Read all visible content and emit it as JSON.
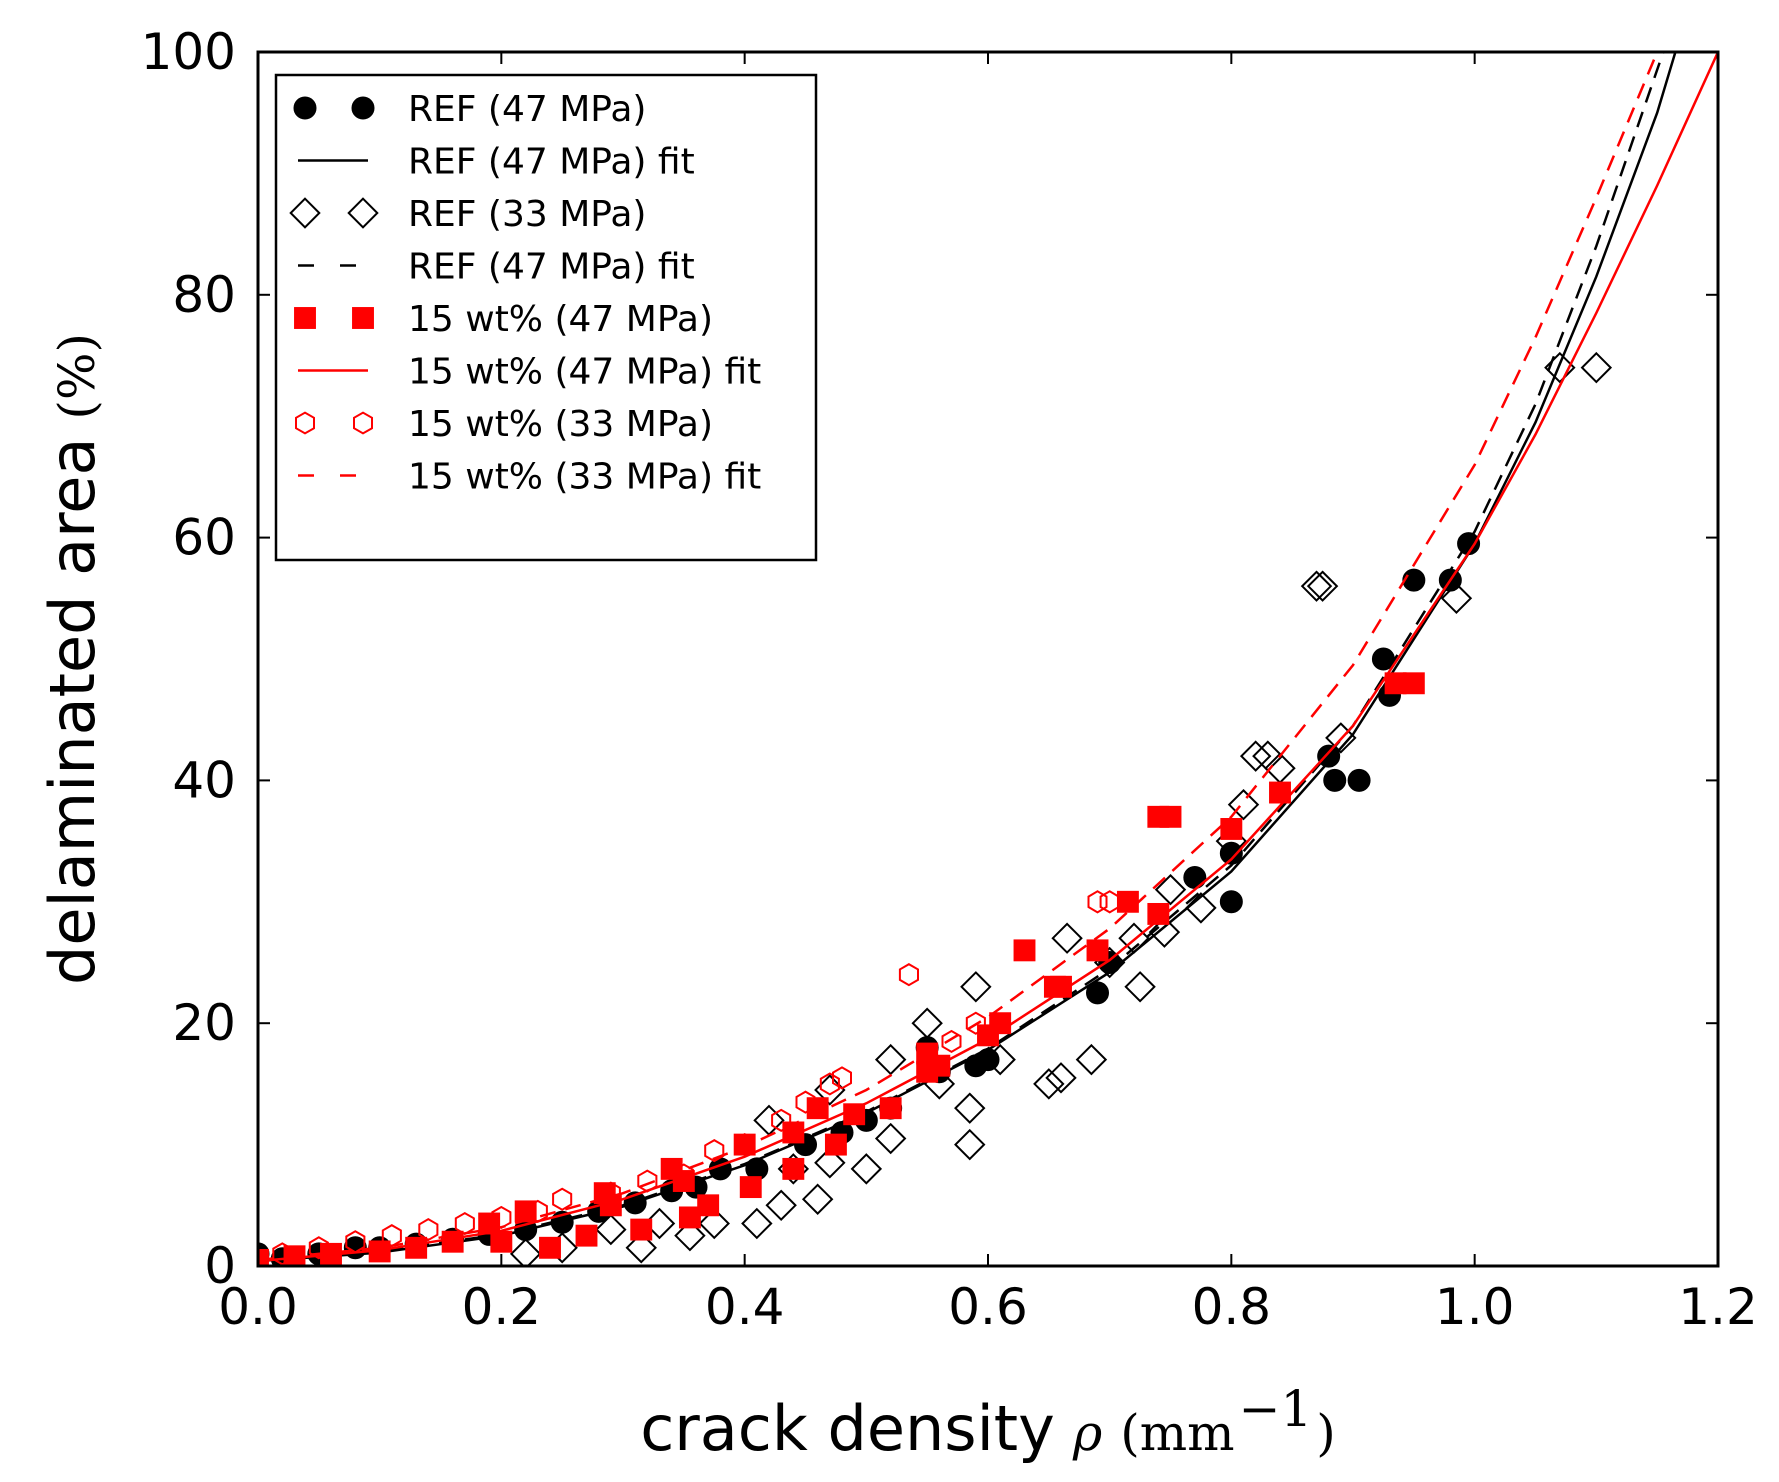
{
  "chart_data": {
    "type": "scatter",
    "title": "",
    "xlabel": {
      "main": "crack density",
      "symbol": "ρ",
      "unit_open": "(mm",
      "unit_exp": "−1",
      "unit_close": ")"
    },
    "ylabel": {
      "main": "delaminated area",
      "unit": "(%)"
    },
    "xlim": [
      0.0,
      1.2
    ],
    "ylim": [
      0,
      100
    ],
    "xticks": [
      "0.0",
      "0.2",
      "0.4",
      "0.6",
      "0.8",
      "1.0",
      "1.2"
    ],
    "yticks": [
      "0",
      "20",
      "40",
      "60",
      "80",
      "100"
    ],
    "xtick_values": [
      0.0,
      0.2,
      0.4,
      0.6,
      0.8,
      1.0,
      1.2
    ],
    "ytick_values": [
      0,
      20,
      40,
      60,
      80,
      100
    ],
    "legend_position": "top-left",
    "colors": {
      "black": "#000000",
      "red": "#ff0000"
    },
    "series": [
      {
        "name": "REF (47 MPa)",
        "kind": "scatter",
        "marker": "filled-circle",
        "color": "#000000",
        "points": [
          [
            0.0,
            1
          ],
          [
            0.02,
            0.6
          ],
          [
            0.05,
            1
          ],
          [
            0.08,
            1.5
          ],
          [
            0.1,
            1.5
          ],
          [
            0.13,
            1.8
          ],
          [
            0.16,
            2.2
          ],
          [
            0.19,
            2.6
          ],
          [
            0.22,
            3
          ],
          [
            0.25,
            3.6
          ],
          [
            0.28,
            4.5
          ],
          [
            0.31,
            5.2
          ],
          [
            0.34,
            6.2
          ],
          [
            0.36,
            6.5
          ],
          [
            0.38,
            8
          ],
          [
            0.41,
            8
          ],
          [
            0.45,
            10
          ],
          [
            0.48,
            11
          ],
          [
            0.5,
            12
          ],
          [
            0.52,
            13
          ],
          [
            0.55,
            18
          ],
          [
            0.56,
            16
          ],
          [
            0.59,
            16.5
          ],
          [
            0.6,
            17
          ],
          [
            0.69,
            22.5
          ],
          [
            0.7,
            25
          ],
          [
            0.77,
            32
          ],
          [
            0.8,
            34
          ],
          [
            0.8,
            30
          ],
          [
            0.88,
            42
          ],
          [
            0.885,
            40
          ],
          [
            0.905,
            40
          ],
          [
            0.925,
            50
          ],
          [
            0.93,
            47
          ],
          [
            0.95,
            56.5
          ],
          [
            0.98,
            56.5
          ],
          [
            0.995,
            59.5
          ]
        ]
      },
      {
        "name": "REF (47 MPa) fit",
        "kind": "line",
        "style": "solid",
        "color": "#000000",
        "points": [
          [
            0.0,
            0.4
          ],
          [
            0.1,
            1.1
          ],
          [
            0.2,
            2.5
          ],
          [
            0.3,
            4.9
          ],
          [
            0.4,
            8.3
          ],
          [
            0.5,
            12.6
          ],
          [
            0.6,
            17.8
          ],
          [
            0.7,
            24.2
          ],
          [
            0.8,
            32.5
          ],
          [
            0.9,
            43.8
          ],
          [
            1.0,
            59.5
          ],
          [
            1.05,
            69.5
          ],
          [
            1.1,
            81.5
          ],
          [
            1.15,
            95
          ],
          [
            1.165,
            100
          ]
        ]
      },
      {
        "name": "REF (33 MPa)",
        "kind": "scatter",
        "marker": "open-diamond",
        "color": "#000000",
        "points": [
          [
            0.22,
            1
          ],
          [
            0.25,
            1.5
          ],
          [
            0.29,
            3
          ],
          [
            0.315,
            1.5
          ],
          [
            0.33,
            3.5
          ],
          [
            0.355,
            2.5
          ],
          [
            0.375,
            3.5
          ],
          [
            0.41,
            3.5
          ],
          [
            0.43,
            5
          ],
          [
            0.42,
            12
          ],
          [
            0.44,
            8
          ],
          [
            0.46,
            5.5
          ],
          [
            0.47,
            8.5
          ],
          [
            0.47,
            14.5
          ],
          [
            0.5,
            8
          ],
          [
            0.52,
            10.5
          ],
          [
            0.52,
            17
          ],
          [
            0.55,
            20
          ],
          [
            0.56,
            15
          ],
          [
            0.585,
            10
          ],
          [
            0.585,
            13
          ],
          [
            0.59,
            23
          ],
          [
            0.61,
            17
          ],
          [
            0.65,
            15
          ],
          [
            0.66,
            15.5
          ],
          [
            0.665,
            27
          ],
          [
            0.685,
            17
          ],
          [
            0.7,
            25
          ],
          [
            0.72,
            27
          ],
          [
            0.725,
            23
          ],
          [
            0.745,
            27.5
          ],
          [
            0.75,
            31
          ],
          [
            0.775,
            29.5
          ],
          [
            0.8,
            35
          ],
          [
            0.81,
            38
          ],
          [
            0.82,
            42
          ],
          [
            0.83,
            42
          ],
          [
            0.84,
            41
          ],
          [
            0.87,
            56
          ],
          [
            0.875,
            56
          ],
          [
            0.89,
            43.5
          ],
          [
            0.985,
            55
          ],
          [
            1.07,
            74
          ],
          [
            1.1,
            74
          ]
        ]
      },
      {
        "name": "REF (47 MPa) fit",
        "kind": "line",
        "style": "dashed",
        "color": "#000000",
        "points": [
          [
            0.0,
            0.4
          ],
          [
            0.1,
            1.2
          ],
          [
            0.2,
            2.6
          ],
          [
            0.3,
            5.0
          ],
          [
            0.4,
            8.4
          ],
          [
            0.5,
            12.7
          ],
          [
            0.6,
            17.9
          ],
          [
            0.7,
            24.5
          ],
          [
            0.8,
            33
          ],
          [
            0.9,
            44.5
          ],
          [
            1.0,
            60.5
          ],
          [
            1.05,
            71
          ],
          [
            1.1,
            84
          ],
          [
            1.155,
            100
          ]
        ]
      },
      {
        "name": "15 wt% (47 MPa)",
        "kind": "scatter",
        "marker": "filled-square",
        "color": "#ff0000",
        "points": [
          [
            0.0,
            0.5
          ],
          [
            0.03,
            0.8
          ],
          [
            0.06,
            1
          ],
          [
            0.1,
            1.2
          ],
          [
            0.13,
            1.5
          ],
          [
            0.16,
            2
          ],
          [
            0.19,
            3.5
          ],
          [
            0.2,
            2
          ],
          [
            0.22,
            4.5
          ],
          [
            0.24,
            1.5
          ],
          [
            0.27,
            2.5
          ],
          [
            0.285,
            6
          ],
          [
            0.29,
            5
          ],
          [
            0.315,
            3
          ],
          [
            0.34,
            8
          ],
          [
            0.35,
            7
          ],
          [
            0.355,
            4
          ],
          [
            0.37,
            5
          ],
          [
            0.4,
            10
          ],
          [
            0.405,
            6.5
          ],
          [
            0.44,
            11
          ],
          [
            0.44,
            8
          ],
          [
            0.46,
            13
          ],
          [
            0.475,
            10
          ],
          [
            0.49,
            12.5
          ],
          [
            0.52,
            13
          ],
          [
            0.55,
            16
          ],
          [
            0.55,
            17.5
          ],
          [
            0.56,
            16.5
          ],
          [
            0.6,
            19
          ],
          [
            0.61,
            20
          ],
          [
            0.63,
            26
          ],
          [
            0.655,
            23
          ],
          [
            0.66,
            23
          ],
          [
            0.69,
            26
          ],
          [
            0.715,
            30
          ],
          [
            0.74,
            29
          ],
          [
            0.74,
            37
          ],
          [
            0.75,
            37
          ],
          [
            0.8,
            36
          ],
          [
            0.84,
            39
          ],
          [
            0.935,
            48
          ],
          [
            0.95,
            48
          ]
        ]
      },
      {
        "name": "15 wt% (47 MPa) fit",
        "kind": "line",
        "style": "solid",
        "color": "#ff0000",
        "points": [
          [
            0.0,
            0.4
          ],
          [
            0.1,
            1.3
          ],
          [
            0.2,
            2.9
          ],
          [
            0.3,
            5.5
          ],
          [
            0.4,
            9
          ],
          [
            0.5,
            13.4
          ],
          [
            0.6,
            18.7
          ],
          [
            0.7,
            25.2
          ],
          [
            0.8,
            33.5
          ],
          [
            0.9,
            44.5
          ],
          [
            1.0,
            59.5
          ],
          [
            1.05,
            68.5
          ],
          [
            1.1,
            78.5
          ],
          [
            1.15,
            89
          ],
          [
            1.2,
            100
          ]
        ]
      },
      {
        "name": "15 wt% (33 MPa)",
        "kind": "scatter",
        "marker": "open-hexagon",
        "color": "#ff0000",
        "points": [
          [
            0.02,
            1
          ],
          [
            0.05,
            1.5
          ],
          [
            0.08,
            2
          ],
          [
            0.11,
            2.5
          ],
          [
            0.14,
            3
          ],
          [
            0.17,
            3.5
          ],
          [
            0.2,
            4
          ],
          [
            0.23,
            4.5
          ],
          [
            0.25,
            5.5
          ],
          [
            0.29,
            6
          ],
          [
            0.32,
            7
          ],
          [
            0.35,
            7.5
          ],
          [
            0.375,
            9.5
          ],
          [
            0.4,
            10
          ],
          [
            0.43,
            12
          ],
          [
            0.45,
            13.5
          ],
          [
            0.47,
            15
          ],
          [
            0.48,
            15.5
          ],
          [
            0.535,
            24
          ],
          [
            0.57,
            18.5
          ],
          [
            0.59,
            20
          ],
          [
            0.69,
            30
          ],
          [
            0.7,
            30
          ]
        ]
      },
      {
        "name": "15 wt% (33 MPa) fit",
        "kind": "line",
        "style": "dashed",
        "color": "#ff0000",
        "points": [
          [
            0.0,
            0.5
          ],
          [
            0.1,
            1.5
          ],
          [
            0.2,
            3.2
          ],
          [
            0.3,
            6
          ],
          [
            0.4,
            9.8
          ],
          [
            0.5,
            14.5
          ],
          [
            0.6,
            20.5
          ],
          [
            0.7,
            27.8
          ],
          [
            0.8,
            37
          ],
          [
            0.9,
            49.5
          ],
          [
            1.0,
            66
          ],
          [
            1.05,
            76.5
          ],
          [
            1.1,
            88
          ],
          [
            1.15,
            100
          ]
        ]
      }
    ]
  }
}
